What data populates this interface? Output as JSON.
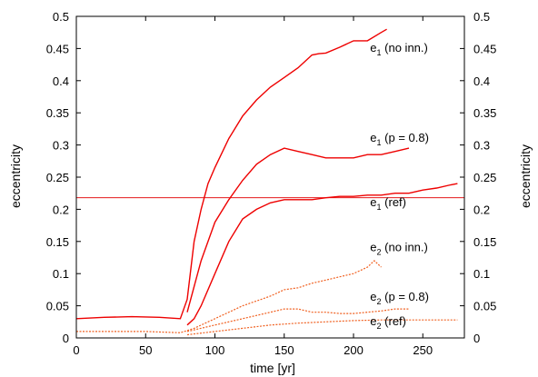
{
  "chart_data": {
    "type": "line",
    "title": "",
    "xlabel": "time [yr]",
    "ylabel": "eccentricity",
    "ylabel_right": "eccentricity",
    "xlim": [
      0,
      280
    ],
    "ylim": [
      0,
      0.5
    ],
    "xticks": [
      "0",
      "50",
      "100",
      "150",
      "200",
      "250"
    ],
    "yticks": [
      "0",
      "0.05",
      "0.1",
      "0.15",
      "0.2",
      "0.25",
      "0.3",
      "0.35",
      "0.4",
      "0.45",
      "0.5"
    ],
    "grid": false,
    "hline": {
      "y": 0.218,
      "color": "#e41a1c"
    },
    "colors": {
      "e1": "#ee0000",
      "e2": "#f06020"
    },
    "series": [
      {
        "group": "e1",
        "label": {
          "main": "e",
          "sub": "1",
          "rest": " (no inn.)",
          "x": 212,
          "y": 0.445
        },
        "x": [
          0,
          20,
          40,
          60,
          75,
          80,
          85,
          90,
          95,
          100,
          110,
          120,
          130,
          140,
          150,
          160,
          170,
          175,
          180,
          190,
          200,
          210,
          220,
          224
        ],
        "y": [
          0.03,
          0.032,
          0.033,
          0.032,
          0.03,
          0.06,
          0.15,
          0.2,
          0.24,
          0.265,
          0.31,
          0.345,
          0.37,
          0.39,
          0.405,
          0.42,
          0.44,
          0.442,
          0.443,
          0.452,
          0.462,
          0.462,
          0.475,
          0.48
        ]
      },
      {
        "group": "e1",
        "label": {
          "main": "e",
          "sub": "1",
          "rest": " (p = 0.8)",
          "x": 212,
          "y": 0.305
        },
        "x": [
          80,
          85,
          90,
          100,
          110,
          120,
          130,
          140,
          150,
          160,
          170,
          180,
          190,
          200,
          210,
          220,
          230,
          240
        ],
        "y": [
          0.04,
          0.08,
          0.12,
          0.18,
          0.215,
          0.245,
          0.27,
          0.285,
          0.295,
          0.29,
          0.285,
          0.28,
          0.28,
          0.28,
          0.285,
          0.285,
          0.29,
          0.295
        ]
      },
      {
        "group": "e1",
        "label": {
          "main": "e",
          "sub": "1",
          "rest": " (ref)",
          "x": 212,
          "y": 0.205
        },
        "x": [
          80,
          85,
          90,
          100,
          110,
          120,
          130,
          140,
          150,
          160,
          170,
          180,
          190,
          200,
          210,
          220,
          230,
          240,
          250,
          260,
          270,
          275
        ],
        "y": [
          0.02,
          0.03,
          0.05,
          0.1,
          0.15,
          0.185,
          0.2,
          0.21,
          0.215,
          0.215,
          0.215,
          0.218,
          0.22,
          0.22,
          0.222,
          0.222,
          0.225,
          0.225,
          0.23,
          0.233,
          0.238,
          0.24
        ]
      },
      {
        "group": "e2",
        "label": {
          "main": "e",
          "sub": "2",
          "rest": " (no inn.)",
          "x": 212,
          "y": 0.135
        },
        "x": [
          0,
          50,
          75,
          85,
          100,
          120,
          140,
          150,
          160,
          170,
          180,
          190,
          200,
          210,
          215,
          220
        ],
        "y": [
          0.01,
          0.01,
          0.008,
          0.015,
          0.03,
          0.05,
          0.065,
          0.075,
          0.078,
          0.085,
          0.09,
          0.095,
          0.1,
          0.11,
          0.12,
          0.11
        ]
      },
      {
        "group": "e2",
        "label": {
          "main": "e",
          "sub": "2",
          "rest": " (p = 0.8)",
          "x": 212,
          "y": 0.058
        },
        "x": [
          80,
          100,
          120,
          140,
          150,
          160,
          170,
          180,
          190,
          200,
          210,
          220,
          230,
          240
        ],
        "y": [
          0.01,
          0.02,
          0.03,
          0.04,
          0.045,
          0.045,
          0.04,
          0.04,
          0.038,
          0.038,
          0.04,
          0.042,
          0.045,
          0.045
        ]
      },
      {
        "group": "e2",
        "label": {
          "main": "e",
          "sub": "2",
          "rest": " (ref)",
          "x": 212,
          "y": 0.02
        },
        "x": [
          80,
          100,
          120,
          140,
          160,
          180,
          200,
          220,
          240,
          250,
          260,
          270,
          275
        ],
        "y": [
          0.005,
          0.01,
          0.015,
          0.02,
          0.023,
          0.025,
          0.027,
          0.028,
          0.028,
          0.028,
          0.028,
          0.028,
          0.028
        ]
      }
    ]
  }
}
